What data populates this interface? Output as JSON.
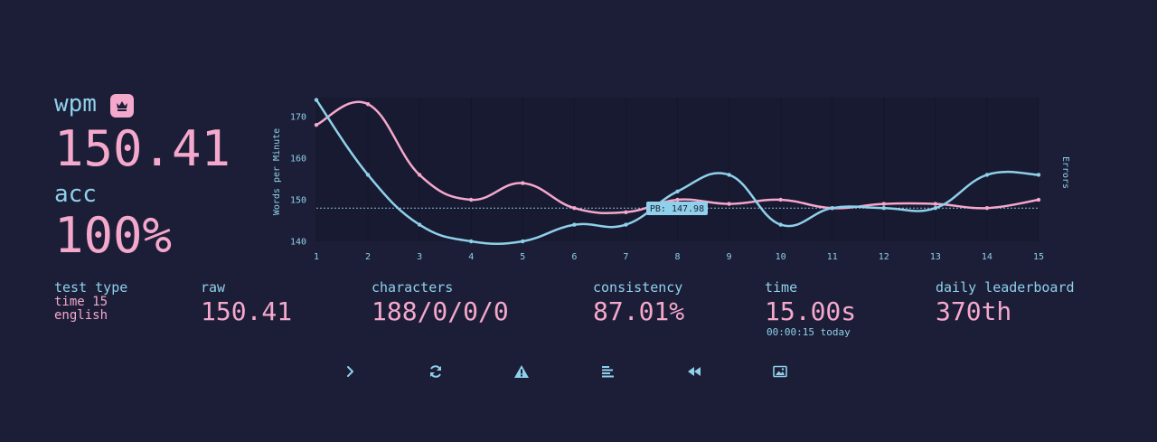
{
  "summary": {
    "wpm_label": "wpm",
    "wpm_value": "150.41",
    "acc_label": "acc",
    "acc_value": "100%"
  },
  "chart_data": {
    "type": "line",
    "x": [
      1,
      2,
      3,
      4,
      5,
      6,
      7,
      8,
      9,
      10,
      11,
      12,
      13,
      14,
      15
    ],
    "ylabel": "Words per Minute",
    "y2label": "Errors",
    "yticks": [
      140,
      150,
      160,
      170
    ],
    "ylim": [
      140,
      174
    ],
    "xlim": [
      1,
      15
    ],
    "series": [
      {
        "values": [
          168,
          173,
          156,
          150,
          154,
          148,
          147,
          150,
          149,
          150,
          148,
          149,
          149,
          148,
          150
        ],
        "color": "#f4a8cc"
      },
      {
        "values": [
          174,
          156,
          144,
          140,
          140,
          144,
          144,
          152,
          156,
          144,
          148,
          148,
          148,
          156,
          156
        ],
        "color": "#8fd0ea"
      }
    ],
    "pb_line": {
      "value": 148,
      "label": "PB: 147.98"
    },
    "grid": true,
    "legend": "none"
  },
  "stats": {
    "test_type": {
      "label": "test type",
      "line1": "time 15",
      "line2": "english"
    },
    "raw": {
      "label": "raw",
      "value": "150.41"
    },
    "characters": {
      "label": "characters",
      "value": "188/0/0/0"
    },
    "consistency": {
      "label": "consistency",
      "value": "87.01%"
    },
    "time": {
      "label": "time",
      "value": "15.00s",
      "sub": "00:00:15 today"
    },
    "leaderboard": {
      "label": "daily leaderboard",
      "value": "370th"
    }
  },
  "buttons": [
    {
      "icon": "chevron-right-icon"
    },
    {
      "icon": "refresh-icon"
    },
    {
      "icon": "warning-icon"
    },
    {
      "icon": "align-left-icon"
    },
    {
      "icon": "rewind-icon"
    },
    {
      "icon": "image-icon"
    }
  ],
  "colors": {
    "background": "#1c1e37",
    "text": "#8fd0ea",
    "accent": "#f4a8cc"
  }
}
